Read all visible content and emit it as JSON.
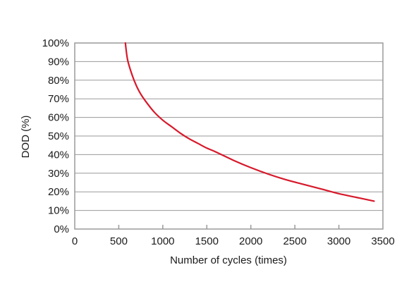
{
  "chart_data": {
    "type": "line",
    "title": "",
    "xlabel": "Number of cycles (times)",
    "ylabel": "DOD (%)",
    "xlim": [
      0,
      3500
    ],
    "ylim": [
      0,
      100
    ],
    "grid": {
      "horizontal": true,
      "vertical": false
    },
    "xticks": [
      0,
      500,
      1000,
      1500,
      2000,
      2500,
      3000,
      3500
    ],
    "xtick_labels": [
      "0",
      "500",
      "1000",
      "1500",
      "2000",
      "2500",
      "3000",
      "3500"
    ],
    "yticks": [
      0,
      10,
      20,
      30,
      40,
      50,
      60,
      70,
      80,
      90,
      100
    ],
    "ytick_labels": [
      "0%",
      "10%",
      "20%",
      "30%",
      "40%",
      "50%",
      "60%",
      "70%",
      "80%",
      "90%",
      "100%"
    ],
    "series": [
      {
        "color": "#d7192b",
        "x": [
          575,
          600,
          650,
          700,
          750,
          800,
          900,
          1000,
          1100,
          1200,
          1300,
          1400,
          1500,
          1600,
          1800,
          2000,
          2200,
          2400,
          2600,
          2800,
          3000,
          3200,
          3400
        ],
        "y": [
          100,
          91,
          83,
          77,
          72.5,
          69,
          63,
          58.5,
          55,
          51.5,
          48.5,
          46,
          43.5,
          41.5,
          37,
          33,
          29.5,
          26.5,
          24,
          21.5,
          19,
          17,
          15
        ]
      }
    ]
  }
}
